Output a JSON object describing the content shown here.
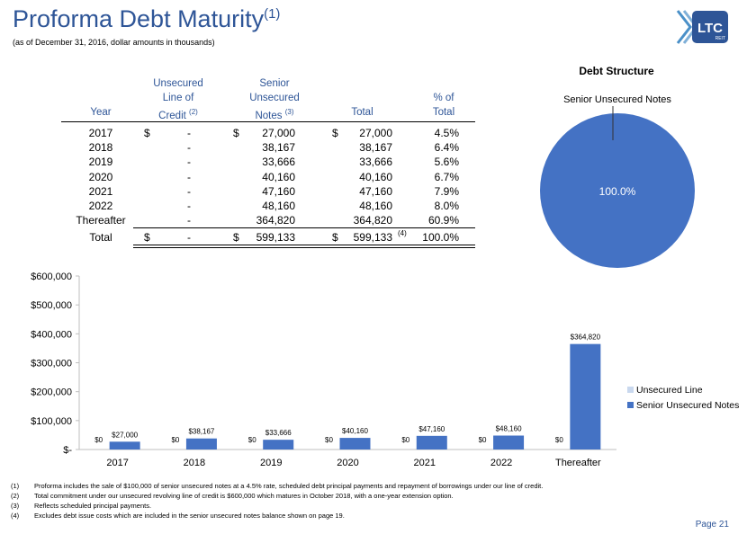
{
  "header": {
    "title": "Proforma Debt Maturity",
    "title_sup": "(1)",
    "subtitle": "(as of December 31, 2016, dollar amounts in thousands)",
    "logo_text": "LTC",
    "logo_subtext": "REIT"
  },
  "table": {
    "headers": {
      "year": "Year",
      "unsecured_1": "Unsecured",
      "unsecured_2": "Line of",
      "unsecured_3": "Credit",
      "unsecured_sup": "(2)",
      "senior_1": "Senior",
      "senior_2": "Unsecured",
      "senior_3": "Notes",
      "senior_sup": "(3)",
      "total": "Total",
      "pct_1": "% of",
      "pct_2": "Total"
    },
    "rows": [
      {
        "year": "2017",
        "line_cur": "$",
        "line": "-",
        "senior_cur": "$",
        "senior": "27,000",
        "total_cur": "$",
        "total": "27,000",
        "pct": "4.5%"
      },
      {
        "year": "2018",
        "line_cur": "",
        "line": "-",
        "senior_cur": "",
        "senior": "38,167",
        "total_cur": "",
        "total": "38,167",
        "pct": "6.4%"
      },
      {
        "year": "2019",
        "line_cur": "",
        "line": "-",
        "senior_cur": "",
        "senior": "33,666",
        "total_cur": "",
        "total": "33,666",
        "pct": "5.6%"
      },
      {
        "year": "2020",
        "line_cur": "",
        "line": "-",
        "senior_cur": "",
        "senior": "40,160",
        "total_cur": "",
        "total": "40,160",
        "pct": "6.7%"
      },
      {
        "year": "2021",
        "line_cur": "",
        "line": "-",
        "senior_cur": "",
        "senior": "47,160",
        "total_cur": "",
        "total": "47,160",
        "pct": "7.9%"
      },
      {
        "year": "2022",
        "line_cur": "",
        "line": "-",
        "senior_cur": "",
        "senior": "48,160",
        "total_cur": "",
        "total": "48,160",
        "pct": "8.0%"
      },
      {
        "year": "Thereafter",
        "line_cur": "",
        "line": "-",
        "senior_cur": "",
        "senior": "364,820",
        "total_cur": "",
        "total": "364,820",
        "pct": "60.9%"
      }
    ],
    "total_row": {
      "year": "Total",
      "line_cur": "$",
      "line": "-",
      "senior_cur": "$",
      "senior": "599,133",
      "total_cur": "$",
      "total": "599,133",
      "total_sup": "(4)",
      "pct": "100.0%"
    }
  },
  "chart_data": [
    {
      "type": "pie",
      "title": "Debt Structure",
      "labels": [
        "Senior Unsecured Notes"
      ],
      "values": [
        100.0
      ],
      "data_labels": [
        "100.0%"
      ],
      "colors": [
        "#4472c4"
      ]
    },
    {
      "type": "bar",
      "categories": [
        "2017",
        "2018",
        "2019",
        "2020",
        "2021",
        "2022",
        "Thereafter"
      ],
      "series": [
        {
          "name": "Unsecured Line",
          "values": [
            0,
            0,
            0,
            0,
            0,
            0,
            0
          ],
          "data_labels": [
            "$0",
            "$0",
            "$0",
            "$0",
            "$0",
            "$0",
            "$0"
          ],
          "color": "#c9d8ee"
        },
        {
          "name": "Senior Unsecured Notes",
          "values": [
            27000,
            38167,
            33666,
            40160,
            47160,
            48160,
            364820
          ],
          "data_labels": [
            "$27,000",
            "$38,167",
            "$33,666",
            "$40,160",
            "$47,160",
            "$48,160",
            "$364,820"
          ],
          "color": "#4472c4"
        }
      ],
      "ylim": [
        0,
        600000
      ],
      "yticks": [
        0,
        100000,
        200000,
        300000,
        400000,
        500000,
        600000
      ],
      "ytick_labels": [
        "$-",
        "$100,000",
        "$200,000",
        "$300,000",
        "$400,000",
        "$500,000",
        "$600,000"
      ],
      "legend": "right",
      "grid": false
    }
  ],
  "footnotes": [
    {
      "num": "(1)",
      "text": "Proforma includes the sale of $100,000 of senior unsecured notes at a 4.5% rate, scheduled debt principal payments and repayment of borrowings under our line of credit."
    },
    {
      "num": "(2)",
      "text": "Total commitment under our unsecured revolving line of credit is $600,000 which matures in October 2018, with a one-year extension option."
    },
    {
      "num": "(3)",
      "text": "Reflects scheduled principal payments."
    },
    {
      "num": "(4)",
      "text": "Excludes debt issue costs which are included in the senior unsecured notes balance shown on page 19."
    }
  ],
  "page_label": "Page 21"
}
